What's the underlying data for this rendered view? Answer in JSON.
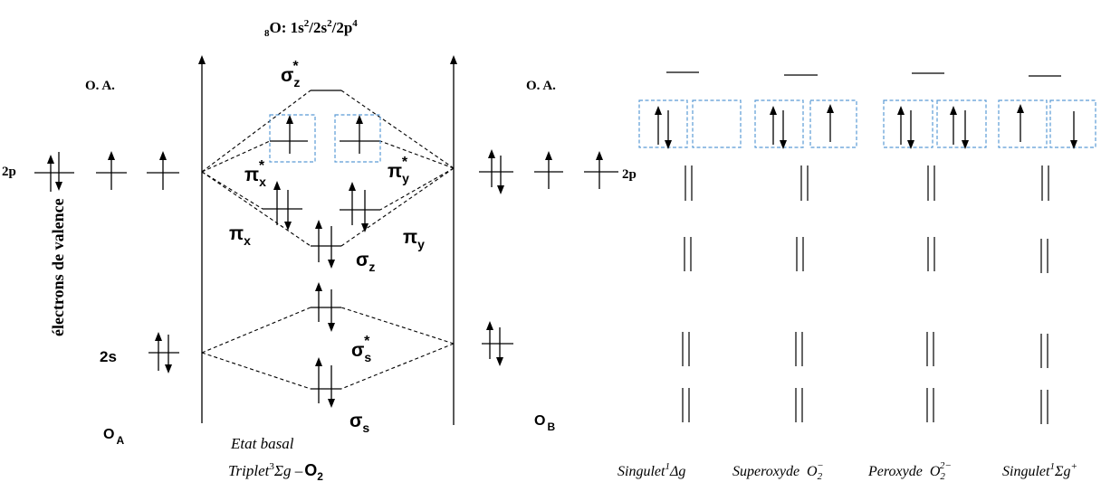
{
  "title": {
    "sub": "8",
    "main": "O: 1s",
    "s1": "2",
    "mid1": "/2s",
    "s2": "2",
    "mid2": "/2p",
    "s3": "4"
  },
  "axis_label": "électrons de valence",
  "oa_left": "O. A.",
  "oa_right": "O. A.",
  "label_2p_left": "2p",
  "label_2p_right": "2p",
  "label_2s": "2s",
  "atom_a": {
    "main": "O",
    "sub": "A"
  },
  "atom_b": {
    "main": "O",
    "sub": "B"
  },
  "mo": {
    "sigma_z_star": {
      "g": "σ",
      "sub": "z",
      "sup": "*"
    },
    "pi_x_star": {
      "g": "π",
      "sub": "x",
      "sup": "*"
    },
    "pi_y_star": {
      "g": "π",
      "sub": "y",
      "sup": "*"
    },
    "pi_x": {
      "g": "π",
      "sub": "x"
    },
    "pi_y": {
      "g": "π",
      "sub": "y"
    },
    "sigma_z": {
      "g": "σ",
      "sub": "z"
    },
    "sigma_s_star": {
      "g": "σ",
      "sub": "s",
      "sup": "*"
    },
    "sigma_s": {
      "g": "σ",
      "sub": "s"
    }
  },
  "ground_state": {
    "line1": "Etat basal",
    "line2": "Triplet",
    "sup": "3",
    "sigma": "Σg –",
    "mol": "O",
    "mol_sub": "2"
  },
  "states": [
    {
      "name": "Singulet",
      "sup": "1",
      "term": "Δg"
    },
    {
      "name": "Superoxyde",
      "ion": "O",
      "ion_sub": "2",
      "ion_sup": "−"
    },
    {
      "name": "Peroxyde",
      "ion": "O",
      "ion_sub": "2",
      "ion_sup": "2−"
    },
    {
      "name": "Singulet",
      "sup": "1",
      "term": "Σg",
      "term_sup": "+"
    }
  ]
}
